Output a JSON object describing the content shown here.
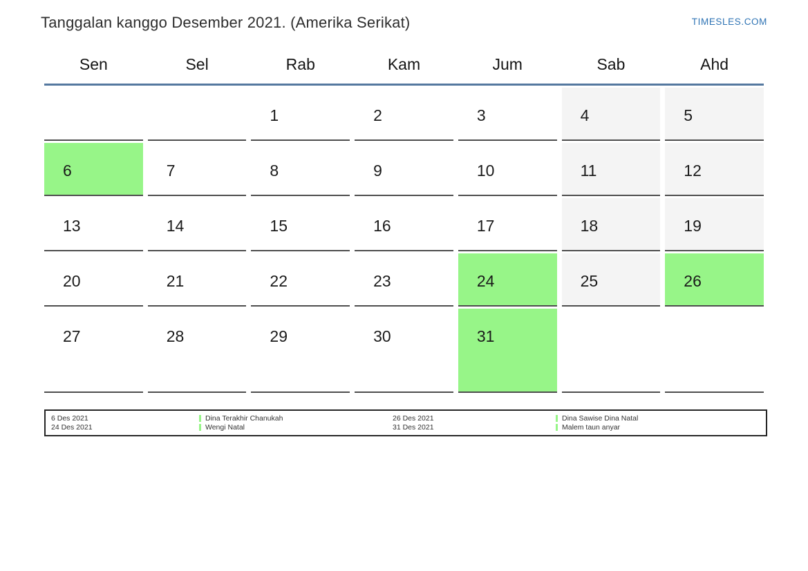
{
  "header": {
    "title": "Tanggalan kanggo Desember 2021. (Amerika Serikat)",
    "site_link": "TIMESLES.COM"
  },
  "calendar": {
    "day_names": [
      "Sen",
      "Sel",
      "Rab",
      "Kam",
      "Jum",
      "Sab",
      "Ahd"
    ],
    "weeks": [
      [
        {
          "day": "",
          "type": "empty"
        },
        {
          "day": "",
          "type": "empty"
        },
        {
          "day": "1",
          "type": "normal"
        },
        {
          "day": "2",
          "type": "normal"
        },
        {
          "day": "3",
          "type": "normal"
        },
        {
          "day": "4",
          "type": "weekend"
        },
        {
          "day": "5",
          "type": "weekend"
        }
      ],
      [
        {
          "day": "6",
          "type": "holiday"
        },
        {
          "day": "7",
          "type": "normal"
        },
        {
          "day": "8",
          "type": "normal"
        },
        {
          "day": "9",
          "type": "normal"
        },
        {
          "day": "10",
          "type": "normal"
        },
        {
          "day": "11",
          "type": "weekend"
        },
        {
          "day": "12",
          "type": "weekend"
        }
      ],
      [
        {
          "day": "13",
          "type": "normal"
        },
        {
          "day": "14",
          "type": "normal"
        },
        {
          "day": "15",
          "type": "normal"
        },
        {
          "day": "16",
          "type": "normal"
        },
        {
          "day": "17",
          "type": "normal"
        },
        {
          "day": "18",
          "type": "weekend"
        },
        {
          "day": "19",
          "type": "weekend"
        }
      ],
      [
        {
          "day": "20",
          "type": "normal"
        },
        {
          "day": "21",
          "type": "normal"
        },
        {
          "day": "22",
          "type": "normal"
        },
        {
          "day": "23",
          "type": "normal"
        },
        {
          "day": "24",
          "type": "holiday"
        },
        {
          "day": "25",
          "type": "weekend"
        },
        {
          "day": "26",
          "type": "holiday"
        }
      ],
      [
        {
          "day": "27",
          "type": "normal"
        },
        {
          "day": "28",
          "type": "normal"
        },
        {
          "day": "29",
          "type": "normal"
        },
        {
          "day": "30",
          "type": "normal"
        },
        {
          "day": "31",
          "type": "holiday"
        },
        {
          "day": "",
          "type": "empty"
        },
        {
          "day": "",
          "type": "empty"
        }
      ]
    ]
  },
  "legend": {
    "entries": [
      {
        "dates": [
          "6 Des 2021",
          "24 Des 2021"
        ],
        "names": [
          "Dina Terakhir Chanukah",
          "Wengi Natal"
        ]
      },
      {
        "dates": [
          "26 Des 2021",
          "31 Des 2021"
        ],
        "names": [
          "Dina Sawise Dina Natal",
          "Malem taun anyar"
        ]
      }
    ]
  },
  "colors": {
    "highlight_green": "#97f588",
    "weekend_gray": "#f4f4f4",
    "header_rule_blue": "#54789f",
    "link_blue": "#2e73b4",
    "cell_border": "#4d4d4d",
    "title_text": "#2d2d2d"
  }
}
